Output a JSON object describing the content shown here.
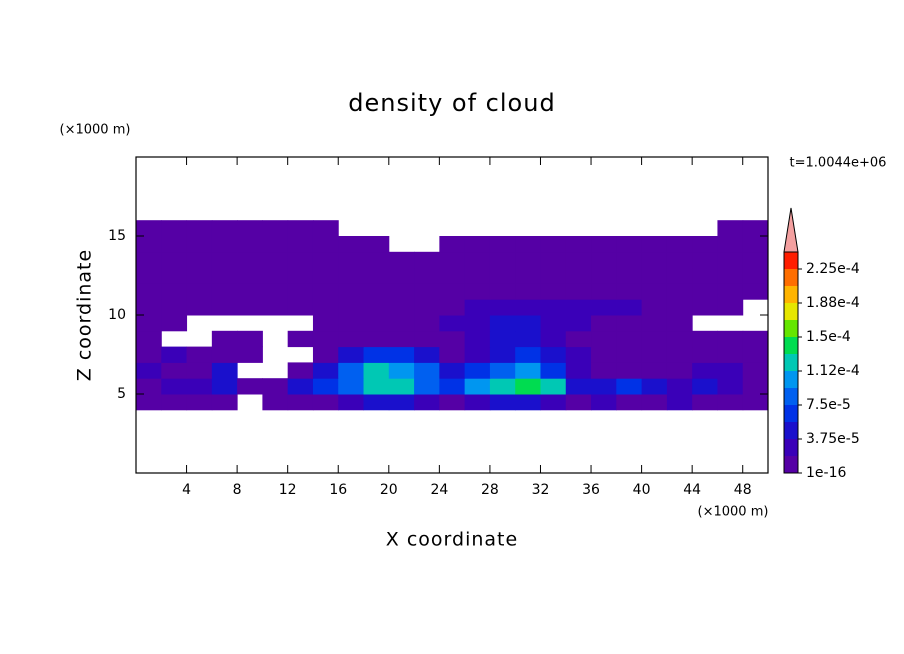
{
  "chart_data": {
    "type": "contour",
    "title": "density of cloud",
    "x_label": "X coordinate",
    "y_label": "Z coordinate",
    "x_unit": "(×1000 m)",
    "y_unit": "(×1000 m)",
    "time_label": "t=1.0044e+06",
    "xlim": [
      0,
      50
    ],
    "ylim": [
      0,
      20
    ],
    "xticks": [
      4,
      8,
      12,
      16,
      20,
      24,
      28,
      32,
      36,
      40,
      44,
      48
    ],
    "yticks": [
      5,
      10,
      15
    ],
    "x": [
      1,
      3,
      5,
      7,
      9,
      11,
      13,
      15,
      17,
      19,
      21,
      23,
      25,
      27,
      29,
      31,
      33,
      35,
      37,
      39,
      41,
      43,
      45,
      47,
      49
    ],
    "y": [
      4.5,
      5.5,
      6.5,
      7.5,
      8.5,
      9.5,
      10.5,
      11.5,
      12.5,
      13.5,
      14.5,
      15.5
    ],
    "z": [
      [
        1e-06,
        1e-06,
        1e-06,
        1e-06,
        null,
        1e-06,
        1e-06,
        1e-06,
        2.5e-05,
        4e-05,
        4e-05,
        2.5e-05,
        1e-06,
        2.5e-05,
        4e-05,
        4e-05,
        2.5e-05,
        1e-06,
        2.5e-05,
        1e-06,
        1e-06,
        2.5e-05,
        1e-06,
        1e-06,
        1e-06
      ],
      [
        1e-06,
        2.5e-05,
        2.5e-05,
        4e-05,
        1e-06,
        1e-06,
        4e-05,
        6e-05,
        8e-05,
        0.00012,
        0.00012,
        8e-05,
        6e-05,
        0.0001,
        0.00012,
        0.000135,
        0.00012,
        4e-05,
        4e-05,
        6e-05,
        4e-05,
        2.5e-05,
        4e-05,
        2.5e-05,
        1e-06
      ],
      [
        2.5e-05,
        1e-06,
        1e-06,
        4e-05,
        null,
        null,
        1e-06,
        4e-05,
        8e-05,
        0.00012,
        0.0001,
        8e-05,
        4e-05,
        6e-05,
        8e-05,
        0.0001,
        6e-05,
        2.5e-05,
        1e-06,
        1e-06,
        1e-06,
        1e-06,
        2.5e-05,
        2.5e-05,
        1e-06
      ],
      [
        1e-06,
        2.5e-05,
        1e-06,
        1e-06,
        1e-06,
        null,
        null,
        1e-06,
        4e-05,
        6e-05,
        6e-05,
        4e-05,
        1e-06,
        2.5e-05,
        4e-05,
        6e-05,
        4e-05,
        2.5e-05,
        1e-06,
        1e-06,
        1e-06,
        1e-06,
        1e-06,
        1e-06,
        1e-06
      ],
      [
        1e-06,
        null,
        null,
        1e-06,
        1e-06,
        null,
        1e-06,
        1e-06,
        1e-06,
        1e-06,
        1e-06,
        1e-06,
        1e-06,
        2.5e-05,
        4e-05,
        4e-05,
        2.5e-05,
        1e-06,
        1e-06,
        1e-06,
        1e-06,
        1e-06,
        1e-06,
        1e-06,
        1e-06
      ],
      [
        1e-06,
        1e-06,
        null,
        null,
        null,
        null,
        null,
        1e-06,
        1e-06,
        1e-06,
        1e-06,
        1e-06,
        2.5e-05,
        2.5e-05,
        4e-05,
        4e-05,
        2.5e-05,
        2.5e-05,
        1e-06,
        1e-06,
        1e-06,
        1e-06,
        null,
        null,
        null
      ],
      [
        1e-06,
        1e-06,
        1e-06,
        1e-06,
        1e-06,
        1e-06,
        1e-06,
        1e-06,
        1e-06,
        1e-06,
        1e-06,
        1e-06,
        1e-06,
        2.5e-05,
        2.5e-05,
        2.5e-05,
        2.5e-05,
        2.5e-05,
        2.5e-05,
        2.5e-05,
        1e-06,
        1e-06,
        1e-06,
        1e-06,
        null
      ],
      [
        1e-06,
        1e-06,
        1e-06,
        1e-06,
        1e-06,
        1e-06,
        1e-06,
        1e-06,
        1e-06,
        1e-06,
        1e-06,
        1e-06,
        1e-06,
        1e-06,
        1e-06,
        1e-06,
        1e-06,
        1e-06,
        1e-06,
        1e-06,
        1e-06,
        1e-06,
        1e-06,
        1e-06,
        1e-06
      ],
      [
        1e-06,
        1e-06,
        1e-06,
        1e-06,
        1e-06,
        1e-06,
        1e-06,
        1e-06,
        1e-06,
        1e-06,
        1e-06,
        1e-06,
        1e-06,
        1e-06,
        1e-06,
        1e-06,
        1e-06,
        1e-06,
        1e-06,
        1e-06,
        1e-06,
        1e-06,
        1e-06,
        1e-06,
        1e-06
      ],
      [
        1e-06,
        1e-06,
        1e-06,
        1e-06,
        1e-06,
        1e-06,
        1e-06,
        1e-06,
        1e-06,
        1e-06,
        1e-06,
        1e-06,
        1e-06,
        1e-06,
        1e-06,
        1e-06,
        1e-06,
        1e-06,
        1e-06,
        1e-06,
        1e-06,
        1e-06,
        1e-06,
        1e-06,
        1e-06
      ],
      [
        1e-06,
        1e-06,
        1e-06,
        1e-06,
        1e-06,
        1e-06,
        1e-06,
        1e-06,
        1e-06,
        1e-06,
        null,
        null,
        1e-06,
        1e-06,
        1e-06,
        1e-06,
        1e-06,
        1e-06,
        1e-06,
        1e-06,
        1e-06,
        1e-06,
        1e-06,
        1e-06,
        1e-06
      ],
      [
        1e-06,
        1e-06,
        1e-06,
        1e-06,
        1e-06,
        1e-06,
        1e-06,
        1e-06,
        null,
        null,
        null,
        null,
        null,
        null,
        null,
        null,
        null,
        null,
        null,
        null,
        null,
        null,
        null,
        1e-06,
        1e-06
      ]
    ],
    "levels": [
      1e-16,
      1.875e-05,
      3.75e-05,
      5.625e-05,
      7.5e-05,
      9.375e-05,
      0.0001125,
      0.00013125,
      0.00015,
      0.00016875,
      0.0001875,
      0.00020625,
      0.000225,
      0.00024375
    ],
    "colors": [
      "#5500a5",
      "#3a00b8",
      "#1a10cc",
      "#0032e6",
      "#0060f0",
      "#0096f0",
      "#00c8b4",
      "#00dc50",
      "#64e600",
      "#e6e600",
      "#ffb400",
      "#ff6e00",
      "#ff1e00"
    ],
    "extend_color": "#f4a0a0",
    "colorbar_ticks": [
      1e-16,
      {
        "value": 3.75e-05,
        "label": "3.75e-5"
      },
      {
        "value": 7.5e-05,
        "label": "7.5e-5"
      },
      {
        "value": 0.0001125,
        "label": "1.12e-4"
      },
      {
        "value": 0.00015,
        "label": "1.5e-4"
      },
      {
        "value": 0.0001875,
        "label": "1.88e-4"
      },
      {
        "value": 0.000225,
        "label": "2.25e-4"
      }
    ]
  }
}
